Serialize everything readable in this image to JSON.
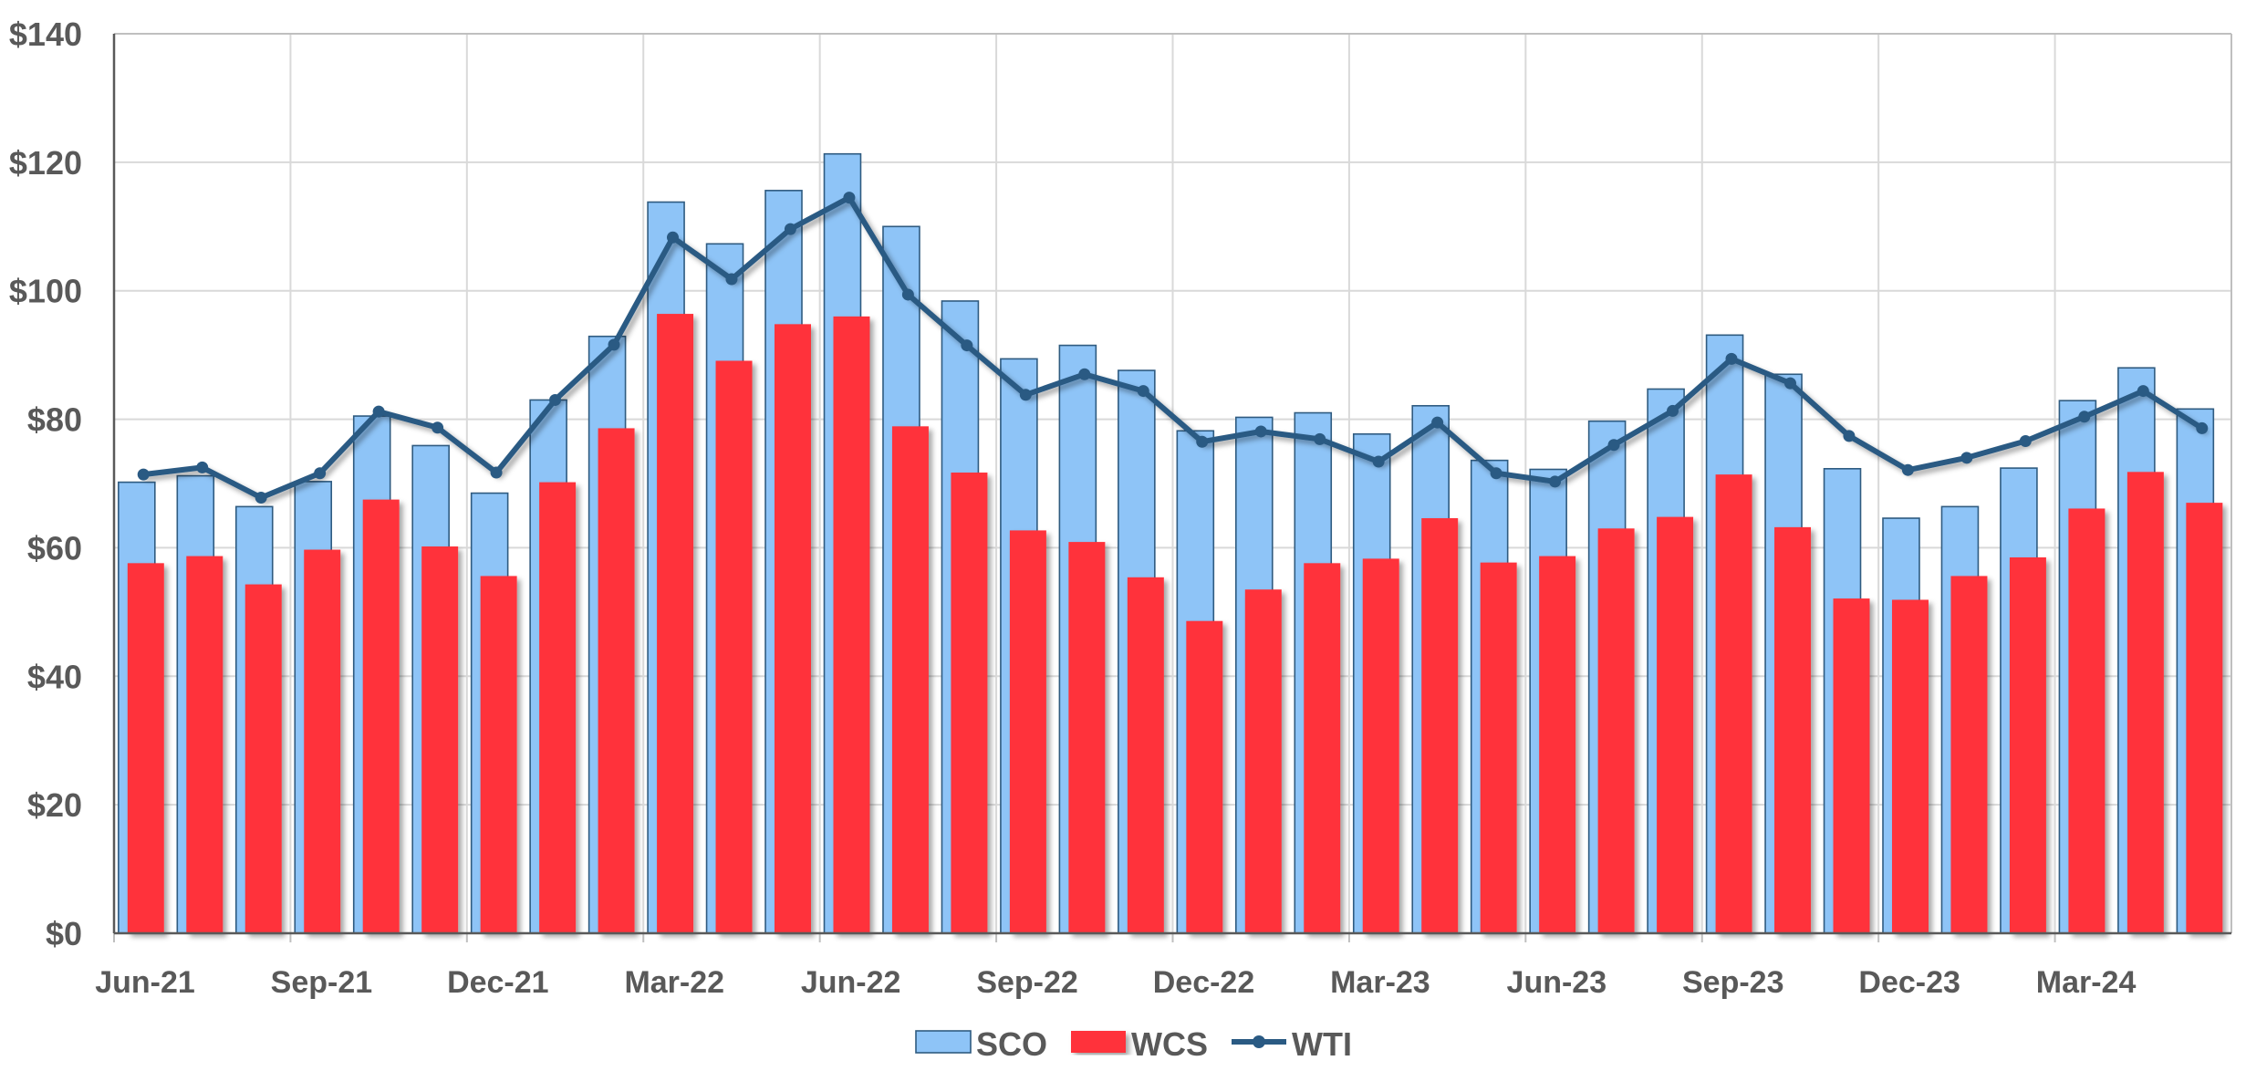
{
  "chart_data": {
    "type": "bar",
    "title": "",
    "xlabel": "",
    "ylabel": "",
    "ylim": [
      0,
      140
    ],
    "y_ticks": [
      "$0",
      "$20",
      "$40",
      "$60",
      "$80",
      "$100",
      "$120",
      "$140"
    ],
    "y_tick_values": [
      0,
      20,
      40,
      60,
      80,
      100,
      120,
      140
    ],
    "grid": true,
    "legend_position": "bottom",
    "categories": [
      "Jun-21",
      "Jul-21",
      "Aug-21",
      "Sep-21",
      "Oct-21",
      "Nov-21",
      "Dec-21",
      "Jan-22",
      "Feb-22",
      "Mar-22",
      "Apr-22",
      "May-22",
      "Jun-22",
      "Jul-22",
      "Aug-22",
      "Sep-22",
      "Oct-22",
      "Nov-22",
      "Dec-22",
      "Jan-23",
      "Feb-23",
      "Mar-23",
      "Apr-23",
      "May-23",
      "Jun-23",
      "Jul-23",
      "Aug-23",
      "Sep-23",
      "Oct-23",
      "Nov-23",
      "Dec-23",
      "Jan-24",
      "Feb-24",
      "Mar-24",
      "Apr-24",
      "May-24"
    ],
    "x_tick_labels": [
      {
        "index": 0,
        "label": "Jun-21"
      },
      {
        "index": 3,
        "label": "Sep-21"
      },
      {
        "index": 6,
        "label": "Dec-21"
      },
      {
        "index": 9,
        "label": "Mar-22"
      },
      {
        "index": 12,
        "label": "Jun-22"
      },
      {
        "index": 15,
        "label": "Sep-22"
      },
      {
        "index": 18,
        "label": "Dec-22"
      },
      {
        "index": 21,
        "label": "Mar-23"
      },
      {
        "index": 24,
        "label": "Jun-23"
      },
      {
        "index": 27,
        "label": "Sep-23"
      },
      {
        "index": 30,
        "label": "Dec-23"
      },
      {
        "index": 33,
        "label": "Mar-24"
      }
    ],
    "series": [
      {
        "name": "SCO",
        "type": "bar",
        "color": "#8ec4f7",
        "stroke": "#2f5b80",
        "values": [
          70.2,
          71.2,
          66.4,
          70.3,
          80.5,
          75.9,
          68.5,
          83.0,
          92.9,
          113.8,
          107.3,
          115.6,
          121.3,
          110.0,
          98.4,
          89.4,
          91.5,
          87.6,
          78.2,
          80.3,
          81.0,
          77.7,
          82.1,
          73.6,
          72.2,
          79.7,
          84.7,
          93.1,
          87.0,
          72.3,
          64.6,
          66.4,
          72.4,
          82.9,
          88.0,
          81.6
        ]
      },
      {
        "name": "WCS",
        "type": "bar",
        "color": "#ff323a",
        "values": [
          57.6,
          58.7,
          54.3,
          59.7,
          67.5,
          60.2,
          55.6,
          70.2,
          78.6,
          96.4,
          89.1,
          94.8,
          96.0,
          78.9,
          71.7,
          62.7,
          60.9,
          55.4,
          48.6,
          53.5,
          57.6,
          58.3,
          64.6,
          57.7,
          58.7,
          63.0,
          64.8,
          71.4,
          63.2,
          52.1,
          51.9,
          55.6,
          58.5,
          66.1,
          71.8,
          67.0
        ]
      },
      {
        "name": "WTI",
        "type": "line",
        "color": "#2a5a83",
        "values": [
          71.4,
          72.5,
          67.8,
          71.6,
          81.2,
          78.7,
          71.7,
          83.0,
          91.6,
          108.3,
          101.8,
          109.6,
          114.5,
          99.4,
          91.5,
          83.8,
          87.0,
          84.4,
          76.5,
          78.1,
          76.9,
          73.4,
          79.5,
          71.6,
          70.3,
          76.0,
          81.3,
          89.4,
          85.6,
          77.4,
          72.1,
          74.0,
          76.6,
          80.4,
          84.4,
          78.6
        ]
      }
    ]
  }
}
